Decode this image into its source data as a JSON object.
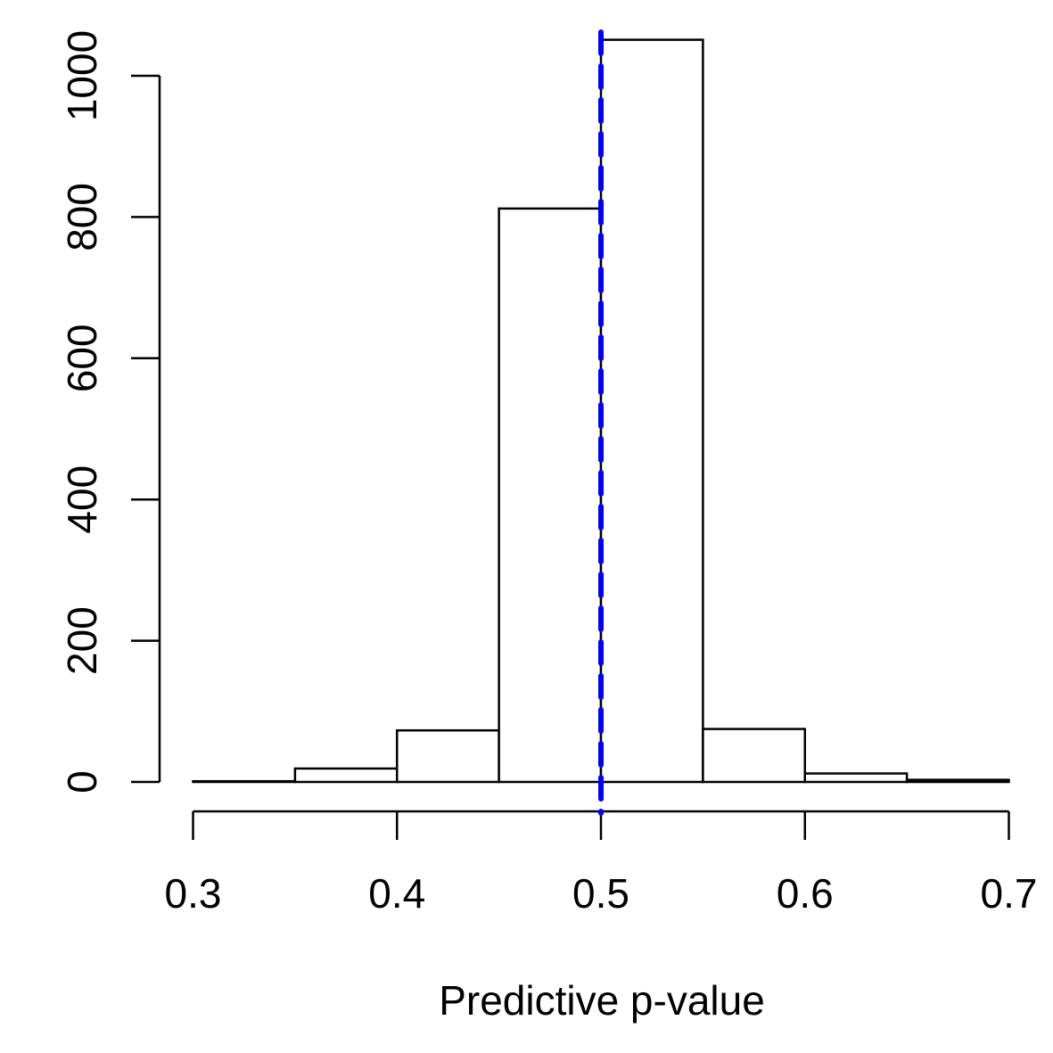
{
  "chart_data": {
    "type": "bar",
    "subtype": "histogram",
    "title": "",
    "xlabel": "Predictive p-value",
    "ylabel": "",
    "bins": [
      {
        "x0": 0.3,
        "x1": 0.35,
        "count": 1
      },
      {
        "x0": 0.35,
        "x1": 0.4,
        "count": 19
      },
      {
        "x0": 0.4,
        "x1": 0.45,
        "count": 73
      },
      {
        "x0": 0.45,
        "x1": 0.5,
        "count": 812
      },
      {
        "x0": 0.5,
        "x1": 0.55,
        "count": 1051
      },
      {
        "x0": 0.55,
        "x1": 0.6,
        "count": 75
      },
      {
        "x0": 0.6,
        "x1": 0.65,
        "count": 12
      },
      {
        "x0": 0.65,
        "x1": 0.7,
        "count": 3
      }
    ],
    "xlim": [
      0.3,
      0.7
    ],
    "ylim": [
      0,
      1000
    ],
    "xticks": [
      0.3,
      0.4,
      0.5,
      0.6,
      0.7
    ],
    "xtick_labels": [
      "0.3",
      "0.4",
      "0.5",
      "0.6",
      "0.7"
    ],
    "yticks": [
      0,
      200,
      400,
      600,
      800,
      1000
    ],
    "ytick_labels": [
      "0",
      "200",
      "400",
      "600",
      "800",
      "1000"
    ],
    "reference_line": {
      "x": 0.5,
      "color": "#0000ff",
      "style": "dashed"
    },
    "bar_fill": "#ffffff",
    "bar_stroke": "#000000",
    "grid": false,
    "legend": "none"
  }
}
